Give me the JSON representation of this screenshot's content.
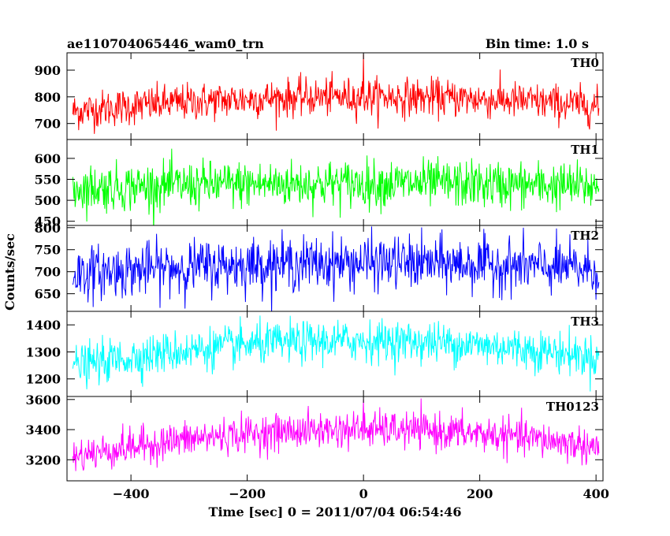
{
  "header": {
    "title": "ae110704065446_wam0_trn",
    "bin_time": "Bin time: 1.0 s"
  },
  "chart_data": {
    "type": "line",
    "xlabel": "Time [sec] 0 = 2011/07/04 06:54:46",
    "ylabel": "Counts/sec",
    "xlim": [
      -510,
      412
    ],
    "xticks": [
      -400,
      -200,
      0,
      200,
      400
    ],
    "xtick_labels": [
      "−400",
      "−200",
      "0",
      "200",
      "400"
    ],
    "x_start": -500,
    "x_end": 405,
    "bin": 1.0,
    "panels": [
      {
        "name": "TH0",
        "color": "#ff0000",
        "ylim": [
          640,
          965
        ],
        "yticks": [
          700,
          800,
          900
        ],
        "mean_center": 800,
        "mean_edge": 745,
        "sigma": 35,
        "spike_at_zero": 960
      },
      {
        "name": "TH1",
        "color": "#00ff00",
        "ylim": [
          440,
          645
        ],
        "yticks": [
          450,
          500,
          550,
          600
        ],
        "mean_center": 540,
        "mean_edge": 528,
        "sigma": 28
      },
      {
        "name": "TH2",
        "color": "#0000ff",
        "ylim": [
          610,
          805
        ],
        "yticks": [
          650,
          700,
          750,
          800
        ],
        "mean_center": 720,
        "mean_edge": 695,
        "sigma": 30
      },
      {
        "name": "TH3",
        "color": "#00ffff",
        "ylim": [
          1135,
          1450
        ],
        "yticks": [
          1200,
          1300,
          1400
        ],
        "mean_center": 1340,
        "mean_edge": 1245,
        "sigma": 38
      },
      {
        "name": "TH0123",
        "color": "#ff00ff",
        "ylim": [
          3060,
          3620
        ],
        "yticks": [
          3200,
          3400,
          3600
        ],
        "mean_center": 3400,
        "mean_edge": 3220,
        "sigma": 60,
        "spike_at_zero": 3600
      }
    ]
  }
}
